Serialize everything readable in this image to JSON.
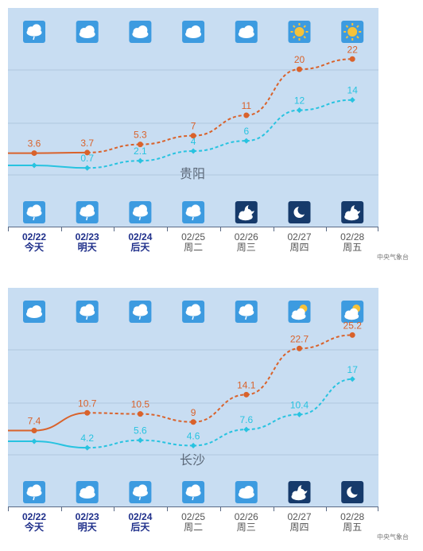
{
  "chart_data": [
    {
      "type": "line",
      "city": "贵阳",
      "categories": [
        "02/22",
        "02/23",
        "02/24",
        "02/25",
        "02/26",
        "02/27",
        "02/28"
      ],
      "weekday_labels": [
        "今天",
        "明天",
        "后天",
        "周二",
        "周三",
        "周四",
        "周五"
      ],
      "day_weather": [
        "light-rain",
        "cloudy",
        "cloudy",
        "cloudy",
        "cloudy",
        "sunny",
        "sunny"
      ],
      "night_weather": [
        "light-rain",
        "light-rain",
        "light-rain",
        "light-rain",
        "partly-cloudy-night",
        "clear-night",
        "partly-cloudy-night"
      ],
      "series": [
        {
          "key": "high",
          "values": [
            3.6,
            3.7,
            5.3,
            7,
            11,
            20,
            22
          ],
          "color": "#d9622b",
          "show_first_label": true
        },
        {
          "key": "low",
          "values": [
            null,
            0.7,
            2.1,
            4,
            6,
            12,
            14
          ],
          "color": "#28c3e0",
          "show_first_label": false,
          "first_day_value": 1.2
        }
      ],
      "ylim": [
        -10,
        32
      ],
      "grid": true,
      "source": "中央气象台"
    },
    {
      "type": "line",
      "city": "长沙",
      "categories": [
        "02/22",
        "02/23",
        "02/24",
        "02/25",
        "02/26",
        "02/27",
        "02/28"
      ],
      "weekday_labels": [
        "今天",
        "明天",
        "后天",
        "周二",
        "周三",
        "周四",
        "周五"
      ],
      "day_weather": [
        "cloudy",
        "light-rain",
        "light-rain",
        "light-rain",
        "light-rain",
        "partly-cloudy",
        "partly-cloudy"
      ],
      "night_weather": [
        "light-rain",
        "cloudy",
        "light-rain",
        "light-rain",
        "cloudy",
        "partly-cloudy-night",
        "clear-night"
      ],
      "series": [
        {
          "key": "high",
          "values": [
            7.4,
            10.7,
            10.5,
            9,
            14.1,
            22.7,
            25.2
          ],
          "color": "#d9622b",
          "show_first_label": true
        },
        {
          "key": "low",
          "values": [
            null,
            4.2,
            5.6,
            4.6,
            7.6,
            10.4,
            17
          ],
          "color": "#28c3e0",
          "show_first_label": false,
          "first_day_value": 5.4
        }
      ],
      "ylim": [
        -6,
        34
      ],
      "grid": true,
      "source": "中央气象台"
    }
  ]
}
